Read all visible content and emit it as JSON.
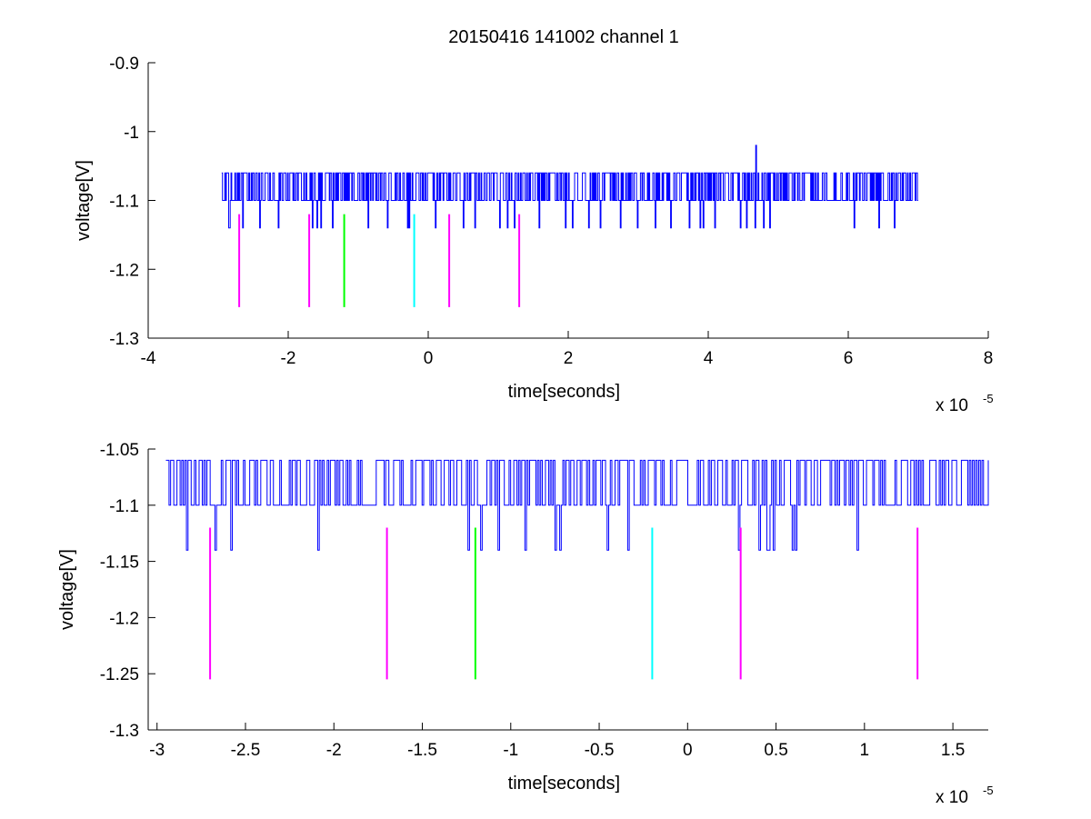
{
  "figure": {
    "title": "20150416 141002 channel 1"
  },
  "chart_data": [
    {
      "type": "line",
      "title": "20150416 141002 channel 1",
      "xlabel": "time[seconds]",
      "ylabel": "voltage[V]",
      "x_multiplier_label": "x 10",
      "x_multiplier_exp": "-5",
      "xlim": [
        -4,
        8
      ],
      "ylim": [
        -1.3,
        -0.9
      ],
      "xticks": [
        -4,
        -2,
        0,
        2,
        4,
        6,
        8
      ],
      "xtick_labels": [
        "-4",
        "-2",
        "0",
        "2",
        "4",
        "6",
        "8"
      ],
      "yticks": [
        -1.3,
        -1.2,
        -1.1,
        -1.0,
        -0.9
      ],
      "ytick_labels": [
        "-1.3",
        "-1.2",
        "-1.1",
        "-1",
        "-0.9"
      ],
      "grid": false,
      "signal": {
        "color": "#0000ff",
        "x_range": [
          -2.95,
          7.0
        ],
        "levels": [
          -1.14,
          -1.1,
          -1.06
        ],
        "baseline": -1.1,
        "spike": {
          "x": 4.68,
          "y": -1.02
        }
      },
      "markers": [
        {
          "x": -2.7,
          "color": "#ff00ff",
          "y_top": -1.12,
          "y_bottom": -1.255
        },
        {
          "x": -1.7,
          "color": "#ff00ff",
          "y_top": -1.12,
          "y_bottom": -1.255
        },
        {
          "x": -1.2,
          "color": "#00ff00",
          "y_top": -1.12,
          "y_bottom": -1.255
        },
        {
          "x": -0.2,
          "color": "#00ffff",
          "y_top": -1.12,
          "y_bottom": -1.255
        },
        {
          "x": 0.3,
          "color": "#ff00ff",
          "y_top": -1.12,
          "y_bottom": -1.255
        },
        {
          "x": 1.3,
          "color": "#ff00ff",
          "y_top": -1.12,
          "y_bottom": -1.255
        }
      ]
    },
    {
      "type": "line",
      "title": "",
      "xlabel": "time[seconds]",
      "ylabel": "voltage[V]",
      "x_multiplier_label": "x 10",
      "x_multiplier_exp": "-5",
      "xlim": [
        -3.05,
        1.7
      ],
      "ylim": [
        -1.3,
        -1.05
      ],
      "xticks": [
        -3,
        -2.5,
        -2,
        -1.5,
        -1,
        -0.5,
        0,
        0.5,
        1,
        1.5
      ],
      "xtick_labels": [
        "-3",
        "-2.5",
        "-2",
        "-1.5",
        "-1",
        "-0.5",
        "0",
        "0.5",
        "1",
        "1.5"
      ],
      "yticks": [
        -1.3,
        -1.25,
        -1.2,
        -1.15,
        -1.1,
        -1.05
      ],
      "ytick_labels": [
        "-1.3",
        "-1.25",
        "-1.2",
        "-1.15",
        "-1.1",
        "-1.05"
      ],
      "grid": false,
      "signal": {
        "color": "#0000ff",
        "x_range": [
          -2.95,
          1.7
        ],
        "levels": [
          -1.14,
          -1.1,
          -1.06
        ],
        "baseline": -1.1
      },
      "markers": [
        {
          "x": -2.7,
          "color": "#ff00ff",
          "y_top": -1.12,
          "y_bottom": -1.255
        },
        {
          "x": -1.7,
          "color": "#ff00ff",
          "y_top": -1.12,
          "y_bottom": -1.255
        },
        {
          "x": -1.2,
          "color": "#00ff00",
          "y_top": -1.12,
          "y_bottom": -1.255
        },
        {
          "x": -0.2,
          "color": "#00ffff",
          "y_top": -1.12,
          "y_bottom": -1.255
        },
        {
          "x": 0.3,
          "color": "#ff00ff",
          "y_top": -1.12,
          "y_bottom": -1.255
        },
        {
          "x": 1.3,
          "color": "#ff00ff",
          "y_top": -1.12,
          "y_bottom": -1.255
        }
      ]
    }
  ]
}
